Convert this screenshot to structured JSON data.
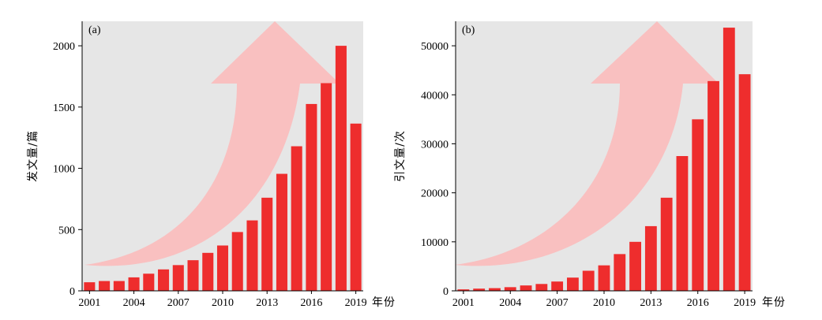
{
  "chart_data": [
    {
      "type": "bar",
      "panel_label": "(a)",
      "ylabel": "发文量/篇",
      "xlabel": "年份",
      "categories": [
        "2001",
        "2002",
        "2003",
        "2004",
        "2005",
        "2006",
        "2007",
        "2008",
        "2009",
        "2010",
        "2011",
        "2012",
        "2013",
        "2014",
        "2015",
        "2016",
        "2017",
        "2018",
        "2019"
      ],
      "x_tick_labels": [
        "2001",
        "2004",
        "2007",
        "2010",
        "2013",
        "2016",
        "2019"
      ],
      "values": [
        70,
        80,
        80,
        110,
        140,
        175,
        210,
        250,
        310,
        370,
        480,
        575,
        760,
        955,
        1180,
        1525,
        1695,
        2000,
        1365
      ],
      "ylim": [
        0,
        2200
      ],
      "y_ticks": [
        0,
        500,
        1000,
        1500,
        2000
      ],
      "y_tick_labels": [
        "0",
        "500",
        "1000",
        "1500",
        "2000"
      ],
      "bar_color": "#ee2d2d",
      "background_color": "#e6e6e6",
      "arrow_color": "#f9c0c0",
      "grid": false
    },
    {
      "type": "bar",
      "panel_label": "(b)",
      "ylabel": "引文量/次",
      "xlabel": "年份",
      "categories": [
        "2001",
        "2002",
        "2003",
        "2004",
        "2005",
        "2006",
        "2007",
        "2008",
        "2009",
        "2010",
        "2011",
        "2012",
        "2013",
        "2014",
        "2015",
        "2016",
        "2017",
        "2018",
        "2019"
      ],
      "x_tick_labels": [
        "2001",
        "2004",
        "2007",
        "2010",
        "2013",
        "2016",
        "2019"
      ],
      "values": [
        300,
        450,
        550,
        750,
        1100,
        1400,
        1900,
        2700,
        4100,
        5200,
        7500,
        10000,
        13200,
        19000,
        27500,
        35000,
        42800,
        53700,
        44200
      ],
      "ylim": [
        0,
        55000
      ],
      "y_ticks": [
        0,
        10000,
        20000,
        30000,
        40000,
        50000
      ],
      "y_tick_labels": [
        "0",
        "10000",
        "20000",
        "30000",
        "40000",
        "50000"
      ],
      "bar_color": "#ee2d2d",
      "background_color": "#e6e6e6",
      "arrow_color": "#f9c0c0",
      "grid": false
    }
  ]
}
